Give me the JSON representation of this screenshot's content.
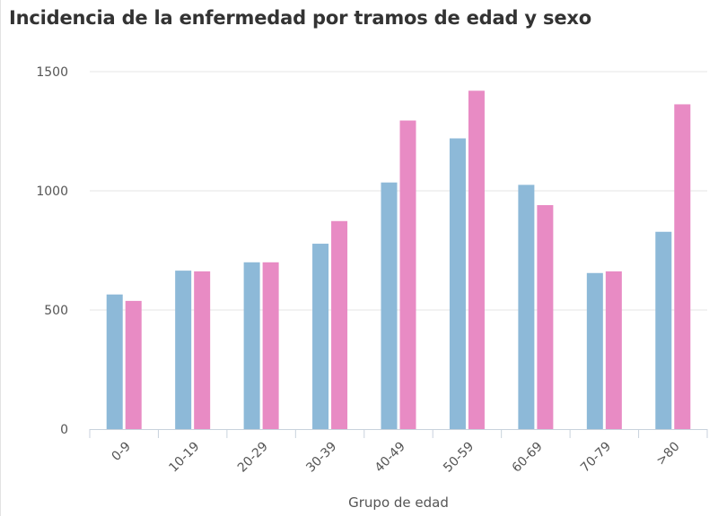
{
  "chart_data": {
    "type": "bar",
    "title": "Incidencia de la enfermedad por tramos de edad y sexo",
    "xlabel": "Grupo de edad",
    "ylabel": "",
    "categories": [
      "0-9",
      "10-19",
      "20-29",
      "30-39",
      "40-49",
      "50-59",
      "60-69",
      "70-79",
      ">80"
    ],
    "series": [
      {
        "values": [
          565,
          665,
          700,
          778,
          1035,
          1220,
          1025,
          655,
          828
        ],
        "color": "#8db9d8"
      },
      {
        "values": [
          538,
          662,
          700,
          873,
          1295,
          1420,
          940,
          662,
          1363
        ],
        "color": "#e88bc4"
      }
    ],
    "ylim": [
      0,
      1500
    ],
    "yticks": [
      0,
      500,
      1000,
      1500
    ],
    "grid": true,
    "legend": "none"
  }
}
